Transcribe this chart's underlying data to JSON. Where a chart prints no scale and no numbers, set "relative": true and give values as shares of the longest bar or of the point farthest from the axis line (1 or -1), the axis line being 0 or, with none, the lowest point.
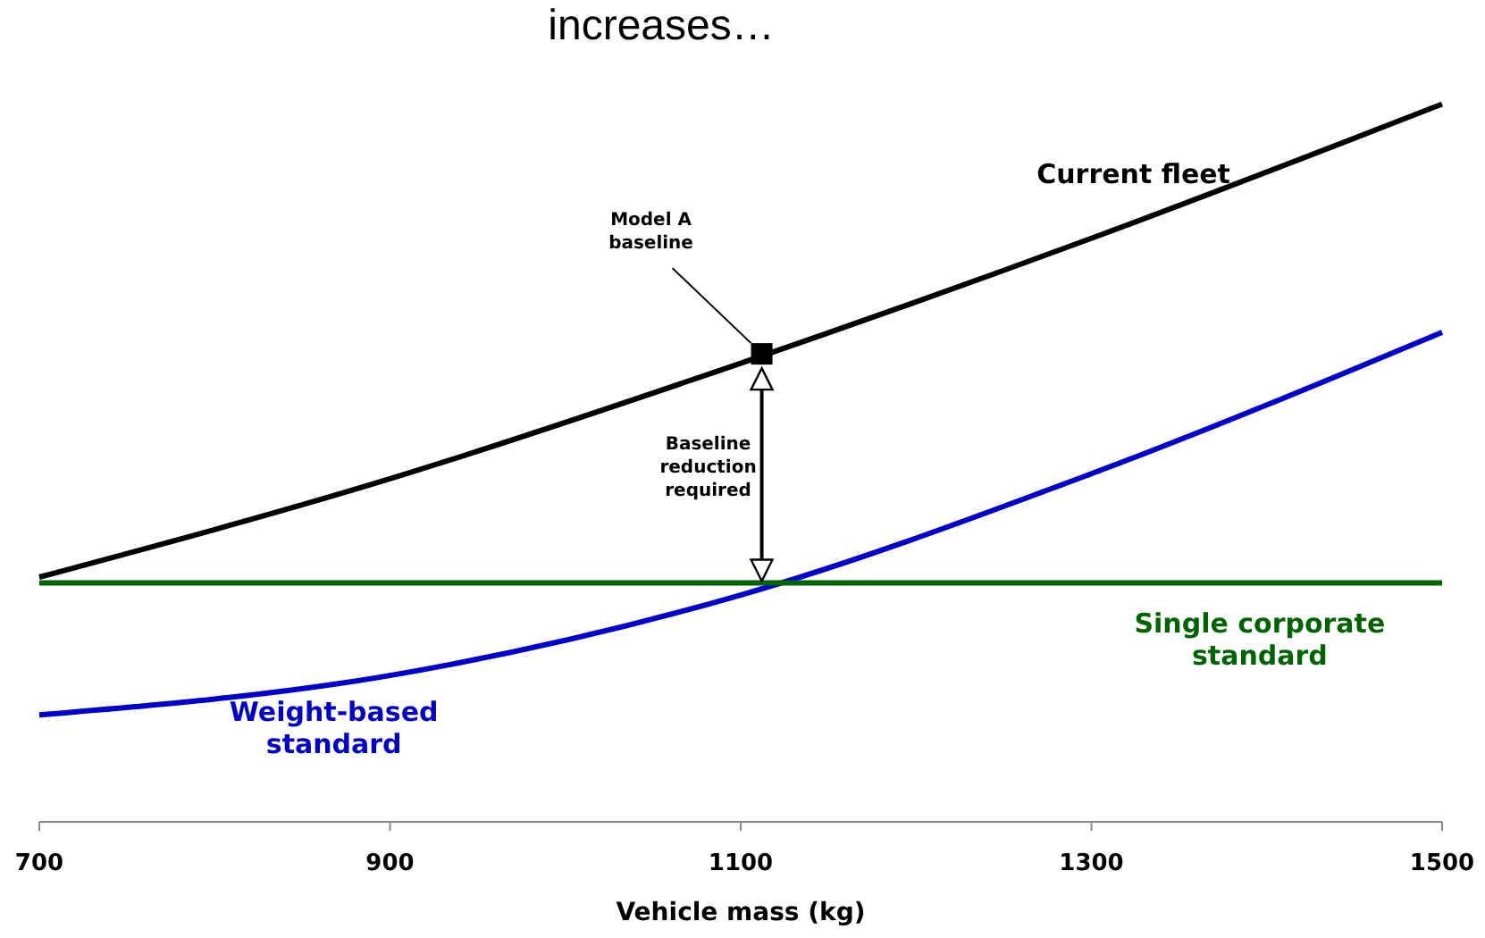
{
  "chart_data": {
    "type": "line",
    "title": "increases…",
    "xlabel": "Vehicle mass (kg)",
    "x": [
      700,
      900,
      1100,
      1300,
      1500
    ],
    "xlim": [
      700,
      1500
    ],
    "xticks": [
      700,
      900,
      1100,
      1300,
      1500
    ],
    "relative": true,
    "tick_labels": "x",
    "grid": false,
    "marker": "none",
    "line_style": "solid",
    "series": [
      {
        "name": "Current fleet",
        "color": "#000000",
        "values": [
          0.341,
          0.478,
          0.639,
          0.813,
          1.0
        ]
      },
      {
        "name": "Weight-based standard",
        "color": "#0000cc",
        "values": [
          0.149,
          0.204,
          0.316,
          0.485,
          0.682
        ]
      },
      {
        "name": "Single corporate standard",
        "color": "#006400",
        "values": [
          0.333,
          0.333,
          0.333,
          0.333,
          0.333
        ]
      },
      {
        "name": "Model A baseline",
        "type": "scatter",
        "marker": "square",
        "color": "#000000",
        "x": [
          1112
        ],
        "values": [
          0.652
        ]
      }
    ],
    "annotations": [
      "Baseline reduction required"
    ]
  }
}
